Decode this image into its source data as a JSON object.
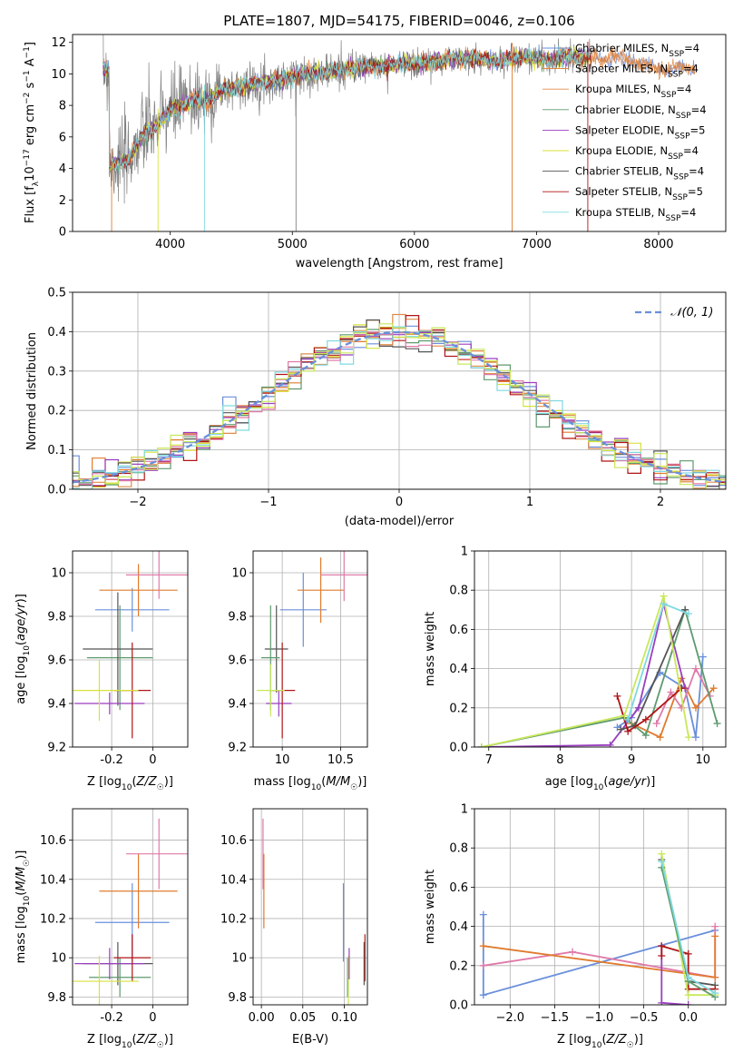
{
  "colors": {
    "series": [
      "#6a8fdb",
      "#e07b2e",
      "#e08c4a",
      "#5e9a6e",
      "#9a3fbf",
      "#d8e23a",
      "#555555",
      "#b01515",
      "#7fd9e0"
    ],
    "pink": "#e07aa8",
    "lime": "#c8e85a",
    "gray": "#808080",
    "grid": "#b0b0b0"
  },
  "chart_data": [
    {
      "id": "spectrum",
      "type": "line",
      "title": "PLATE=1807, MJD=54175, FIBERID=0046, z=0.106",
      "xlabel": "wavelength [Angstrom, rest frame]",
      "ylabel": "Flux [fλ10⁻¹⁷ erg cm⁻² s⁻¹ A⁻¹]",
      "xlim": [
        3200,
        8550
      ],
      "ylim": [
        0,
        12.5
      ],
      "xticks": [
        4000,
        5000,
        6000,
        7000,
        8000
      ],
      "yticks": [
        0,
        2,
        4,
        6,
        8,
        10,
        12
      ],
      "grid": false,
      "legend_position": "top-right",
      "legend": [
        {
          "base": "Chabrier MILES, N",
          "sub": "SSP",
          "tail": "=4"
        },
        {
          "base": "Salpeter MILES, N",
          "sub": "SSP",
          "tail": "=4"
        },
        {
          "base": "Kroupa MILES, N",
          "sub": "SSP",
          "tail": "=4"
        },
        {
          "base": "Chabrier ELODIE, N",
          "sub": "SSP",
          "tail": "=4"
        },
        {
          "base": "Salpeter ELODIE, N",
          "sub": "SSP",
          "tail": "=5"
        },
        {
          "base": "Kroupa ELODIE, N",
          "sub": "SSP",
          "tail": "=4"
        },
        {
          "base": "Chabrier STELIB, N",
          "sub": "SSP",
          "tail": "=4"
        },
        {
          "base": "Salpeter STELIB, N",
          "sub": "SSP",
          "tail": "=5"
        },
        {
          "base": "Kroupa STELIB, N",
          "sub": "SSP",
          "tail": "=4"
        }
      ],
      "model_continuum": {
        "x": [
          3500,
          3650,
          3700,
          3800,
          3900,
          4000,
          4100,
          4200,
          4300,
          4400,
          4500,
          4700,
          4900,
          5100,
          5300,
          5500,
          5700,
          5900,
          6100,
          6300,
          6500,
          6700,
          6900,
          7100,
          7300,
          7500,
          7700,
          8000,
          8200,
          8300
        ],
        "y": [
          4.2,
          4.5,
          5.2,
          6.3,
          6.8,
          7.7,
          8.0,
          8.4,
          8.3,
          8.9,
          9.1,
          9.4,
          9.6,
          10.0,
          10.1,
          10.4,
          10.5,
          10.6,
          10.7,
          10.9,
          11.0,
          10.8,
          11.1,
          10.9,
          11.1,
          11.0,
          11.0,
          10.3,
          10.4,
          10.3
        ]
      },
      "data_extent": [
        3450,
        7450
      ]
    },
    {
      "id": "residuals",
      "type": "line",
      "xlabel": "(data-model)/error",
      "ylabel": "Normed distribution",
      "xlim": [
        -2.5,
        2.5
      ],
      "ylim": [
        0,
        0.5
      ],
      "xticks": [
        -2,
        -1,
        0,
        1,
        2
      ],
      "xticklabels": [
        "−2",
        "−1",
        "0",
        "1",
        "2"
      ],
      "yticks": [
        0.0,
        0.1,
        0.2,
        0.3,
        0.4,
        0.5
      ],
      "grid": true,
      "legend_position": "top-right",
      "legend": [
        "𝒩(0, 1)"
      ],
      "bin_width": 0.1
    },
    {
      "id": "age_vs_Z",
      "type": "scatter",
      "xlabel": "Z [log10(Z/Z☉)]",
      "ylabel": "age  [log10(age/yr)]",
      "xlim": [
        -0.39,
        0.17
      ],
      "ylim": [
        9.2,
        10.1
      ],
      "xticks": [
        -0.2,
        0.0
      ],
      "yticks": [
        9.2,
        9.4,
        9.6,
        9.8,
        10.0
      ],
      "grid": true,
      "points": [
        {
          "x": -0.1,
          "xerr": 0.18,
          "y": 9.83,
          "yerr": 0.1,
          "color": "#6a8fdb"
        },
        {
          "x": -0.07,
          "xerr": 0.19,
          "y": 9.92,
          "yerr": 0.12,
          "color": "#e07b2e"
        },
        {
          "x": 0.03,
          "xerr": 0.16,
          "y": 9.99,
          "yerr": 0.11,
          "color": "#e07aa8"
        },
        {
          "x": -0.16,
          "xerr": 0.16,
          "y": 9.61,
          "yerr": 0.24,
          "color": "#5e9a6e"
        },
        {
          "x": -0.17,
          "xerr": 0.17,
          "y": 9.65,
          "yerr": 0.26,
          "color": "#555555"
        },
        {
          "x": -0.21,
          "xerr": 0.17,
          "y": 9.4,
          "yerr": 0.05,
          "color": "#9a3fbf"
        },
        {
          "x": -0.1,
          "xerr": 0.09,
          "y": 9.46,
          "yerr": 0.22,
          "color": "#b01515"
        },
        {
          "x": -0.26,
          "xerr": 0.19,
          "y": 9.46,
          "yerr": 0.14,
          "color": "#d8e23a"
        }
      ]
    },
    {
      "id": "age_vs_mass",
      "type": "scatter",
      "xlabel": "mass [log10(M/M☉)]",
      "ylabel": "",
      "xlim": [
        9.75,
        10.73
      ],
      "ylim": [
        9.2,
        10.1
      ],
      "xticks": [
        10.0,
        10.5
      ],
      "yticks": [
        9.2,
        9.4,
        9.6,
        9.8,
        10.0
      ],
      "grid": true,
      "points": [
        {
          "x": 10.18,
          "xerr": 0.2,
          "y": 9.83,
          "yerr": 0.17,
          "color": "#6a8fdb"
        },
        {
          "x": 10.33,
          "xerr": 0.2,
          "y": 9.92,
          "yerr": 0.15,
          "color": "#e07b2e"
        },
        {
          "x": 10.53,
          "xerr": 0.2,
          "y": 9.99,
          "yerr": 0.12,
          "color": "#e07aa8"
        },
        {
          "x": 9.95,
          "xerr": 0.1,
          "y": 9.65,
          "yerr": 0.2,
          "color": "#555555"
        },
        {
          "x": 9.9,
          "xerr": 0.08,
          "y": 9.61,
          "yerr": 0.24,
          "color": "#5e9a6e"
        },
        {
          "x": 9.97,
          "xerr": 0.11,
          "y": 9.4,
          "yerr": 0.06,
          "color": "#9a3fbf"
        },
        {
          "x": 10.0,
          "xerr": 0.11,
          "y": 9.46,
          "yerr": 0.22,
          "color": "#b01515"
        },
        {
          "x": 9.9,
          "xerr": 0.12,
          "y": 9.46,
          "yerr": 0.12,
          "color": "#c8e85a"
        }
      ]
    },
    {
      "id": "weight_vs_age",
      "type": "line",
      "xlabel": "age  [log10(age/yr)]",
      "ylabel": "mass weight",
      "xlim": [
        6.8,
        10.32
      ],
      "ylim": [
        0,
        1.0
      ],
      "xticks": [
        7,
        8,
        9,
        10
      ],
      "yticks": [
        0.0,
        0.2,
        0.4,
        0.6,
        0.8,
        1.0
      ],
      "grid": true,
      "series": [
        {
          "color": "#6a8fdb",
          "x": [
            8.8,
            9.0,
            9.4,
            9.75,
            9.9,
            10.0
          ],
          "y": [
            0.1,
            0.15,
            0.38,
            0.3,
            0.05,
            0.46
          ]
        },
        {
          "color": "#e07b2e",
          "x": [
            9.0,
            9.4,
            9.7,
            9.9,
            10.15
          ],
          "y": [
            0.12,
            0.05,
            0.35,
            0.2,
            0.3
          ]
        },
        {
          "color": "#e07aa8",
          "x": [
            9.35,
            9.55,
            9.7,
            9.9,
            10.1
          ],
          "y": [
            0.12,
            0.28,
            0.2,
            0.4,
            0.26
          ]
        },
        {
          "color": "#9a3fbf",
          "x": [
            6.9,
            8.7,
            9.1,
            9.45,
            9.75
          ],
          "y": [
            0.0,
            0.01,
            0.2,
            0.73,
            0.3
          ]
        },
        {
          "color": "#5e9a6e",
          "x": [
            6.9,
            8.9,
            9.2,
            9.75,
            10.2
          ],
          "y": [
            0.0,
            0.15,
            0.06,
            0.7,
            0.12
          ]
        },
        {
          "color": "#555555",
          "x": [
            8.85,
            9.05,
            9.75
          ],
          "y": [
            0.09,
            0.11,
            0.7
          ]
        },
        {
          "color": "#b01515",
          "x": [
            8.8,
            8.95,
            9.2,
            9.7
          ],
          "y": [
            0.26,
            0.08,
            0.14,
            0.3
          ]
        },
        {
          "color": "#c8e85a",
          "x": [
            6.9,
            8.9,
            9.45,
            9.8
          ],
          "y": [
            0.0,
            0.16,
            0.77,
            0.05
          ]
        },
        {
          "color": "#7fd9e0",
          "x": [
            8.95,
            9.45,
            9.8
          ],
          "y": [
            0.14,
            0.73,
            0.68
          ]
        }
      ]
    },
    {
      "id": "mass_vs_Z",
      "type": "scatter",
      "xlabel": "Z [log10(Z/Z☉)]",
      "ylabel": "mass [log10(M/M☉)]",
      "xlim": [
        -0.39,
        0.17
      ],
      "ylim": [
        9.76,
        10.76
      ],
      "xticks": [
        -0.2,
        0.0
      ],
      "yticks": [
        9.8,
        10.0,
        10.2,
        10.4,
        10.6
      ],
      "grid": true,
      "points": [
        {
          "x": -0.1,
          "xerr": 0.18,
          "y": 10.18,
          "yerr": 0.2,
          "color": "#6a8fdb"
        },
        {
          "x": -0.07,
          "xerr": 0.19,
          "y": 10.34,
          "yerr": 0.19,
          "color": "#e07b2e"
        },
        {
          "x": 0.03,
          "xerr": 0.16,
          "y": 10.53,
          "yerr": 0.18,
          "color": "#e07aa8"
        },
        {
          "x": -0.17,
          "xerr": 0.17,
          "y": 9.97,
          "yerr": 0.11,
          "color": "#555555"
        },
        {
          "x": -0.16,
          "xerr": 0.15,
          "y": 9.9,
          "yerr": 0.1,
          "color": "#5e9a6e"
        },
        {
          "x": -0.21,
          "xerr": 0.17,
          "y": 9.97,
          "yerr": 0.08,
          "color": "#9a3fbf"
        },
        {
          "x": -0.1,
          "xerr": 0.09,
          "y": 10.0,
          "yerr": 0.12,
          "color": "#b01515"
        },
        {
          "x": -0.26,
          "xerr": 0.19,
          "y": 9.88,
          "yerr": 0.13,
          "color": "#d8e23a"
        }
      ]
    },
    {
      "id": "mass_vs_ebv",
      "type": "scatter",
      "xlabel": "E(B-V)",
      "ylabel": "",
      "xlim": [
        -0.01,
        0.128
      ],
      "ylim": [
        9.76,
        10.76
      ],
      "xticks": [
        0.0,
        0.05,
        0.1
      ],
      "xticklabels": [
        "0.00",
        "0.05",
        "0.10"
      ],
      "yticks": [
        9.8,
        10.0,
        10.2,
        10.4,
        10.6
      ],
      "grid": true,
      "points": [
        {
          "x": 0.002,
          "y": 10.53,
          "yerr": 0.18,
          "color": "#e07aa8"
        },
        {
          "x": 0.003,
          "y": 10.34,
          "yerr": 0.19,
          "color": "#e07b2e"
        },
        {
          "x": 0.099,
          "y": 10.18,
          "yerr": 0.2,
          "color": "#6a8fdb"
        },
        {
          "x": 0.104,
          "y": 9.9,
          "yerr": 0.1,
          "color": "#5e9a6e"
        },
        {
          "x": 0.105,
          "y": 9.88,
          "yerr": 0.13,
          "color": "#c8e85a"
        },
        {
          "x": 0.106,
          "y": 9.97,
          "yerr": 0.08,
          "color": "#9a3fbf"
        },
        {
          "x": 0.124,
          "y": 9.97,
          "yerr": 0.11,
          "color": "#555555"
        },
        {
          "x": 0.125,
          "y": 10.0,
          "yerr": 0.12,
          "color": "#b01515"
        }
      ]
    },
    {
      "id": "weight_vs_Z",
      "type": "line",
      "xlabel": "Z [log10(Z/Z☉)]",
      "ylabel": "mass weight",
      "xlim": [
        -2.4,
        0.42
      ],
      "ylim": [
        0,
        1.0
      ],
      "xticks": [
        -2.0,
        -1.5,
        -1.0,
        -0.5,
        0.0
      ],
      "xticklabels": [
        "−2.0",
        "−1.5",
        "−1.0",
        "−0.5",
        "0.0"
      ],
      "yticks": [
        0.0,
        0.2,
        0.4,
        0.6,
        0.8,
        1.0
      ],
      "grid": true,
      "series": [
        {
          "color": "#6a8fdb",
          "x": [
            -2.3,
            -2.3,
            0.3
          ],
          "y": [
            0.46,
            0.05,
            0.38
          ]
        },
        {
          "color": "#e07aa8",
          "x": [
            -2.3,
            -1.3,
            0.3,
            0.3
          ],
          "y": [
            0.2,
            0.27,
            0.14,
            0.4
          ]
        },
        {
          "color": "#e07b2e",
          "x": [
            -2.3,
            0.3,
            0.3
          ],
          "y": [
            0.3,
            0.14,
            0.35
          ]
        },
        {
          "color": "#9a3fbf",
          "x": [
            -0.3,
            -0.3,
            0.0
          ],
          "y": [
            0.3,
            0.01,
            0.0
          ]
        },
        {
          "color": "#555555",
          "x": [
            -0.3,
            0.0,
            0.3
          ],
          "y": [
            0.74,
            0.12,
            0.1
          ]
        },
        {
          "color": "#b01515",
          "x": [
            -0.3,
            -0.3,
            0.0,
            0.0,
            0.3
          ],
          "y": [
            0.25,
            0.3,
            0.26,
            0.08,
            0.08
          ]
        },
        {
          "color": "#c8e85a",
          "x": [
            -0.3,
            0.0,
            0.3
          ],
          "y": [
            0.77,
            0.05,
            0.05
          ]
        },
        {
          "color": "#5e9a6e",
          "x": [
            -0.3,
            0.0,
            0.3
          ],
          "y": [
            0.7,
            0.12,
            0.04
          ]
        },
        {
          "color": "#7fd9e0",
          "x": [
            -0.3,
            0.0,
            0.3
          ],
          "y": [
            0.73,
            0.14,
            0.06
          ]
        }
      ]
    }
  ]
}
